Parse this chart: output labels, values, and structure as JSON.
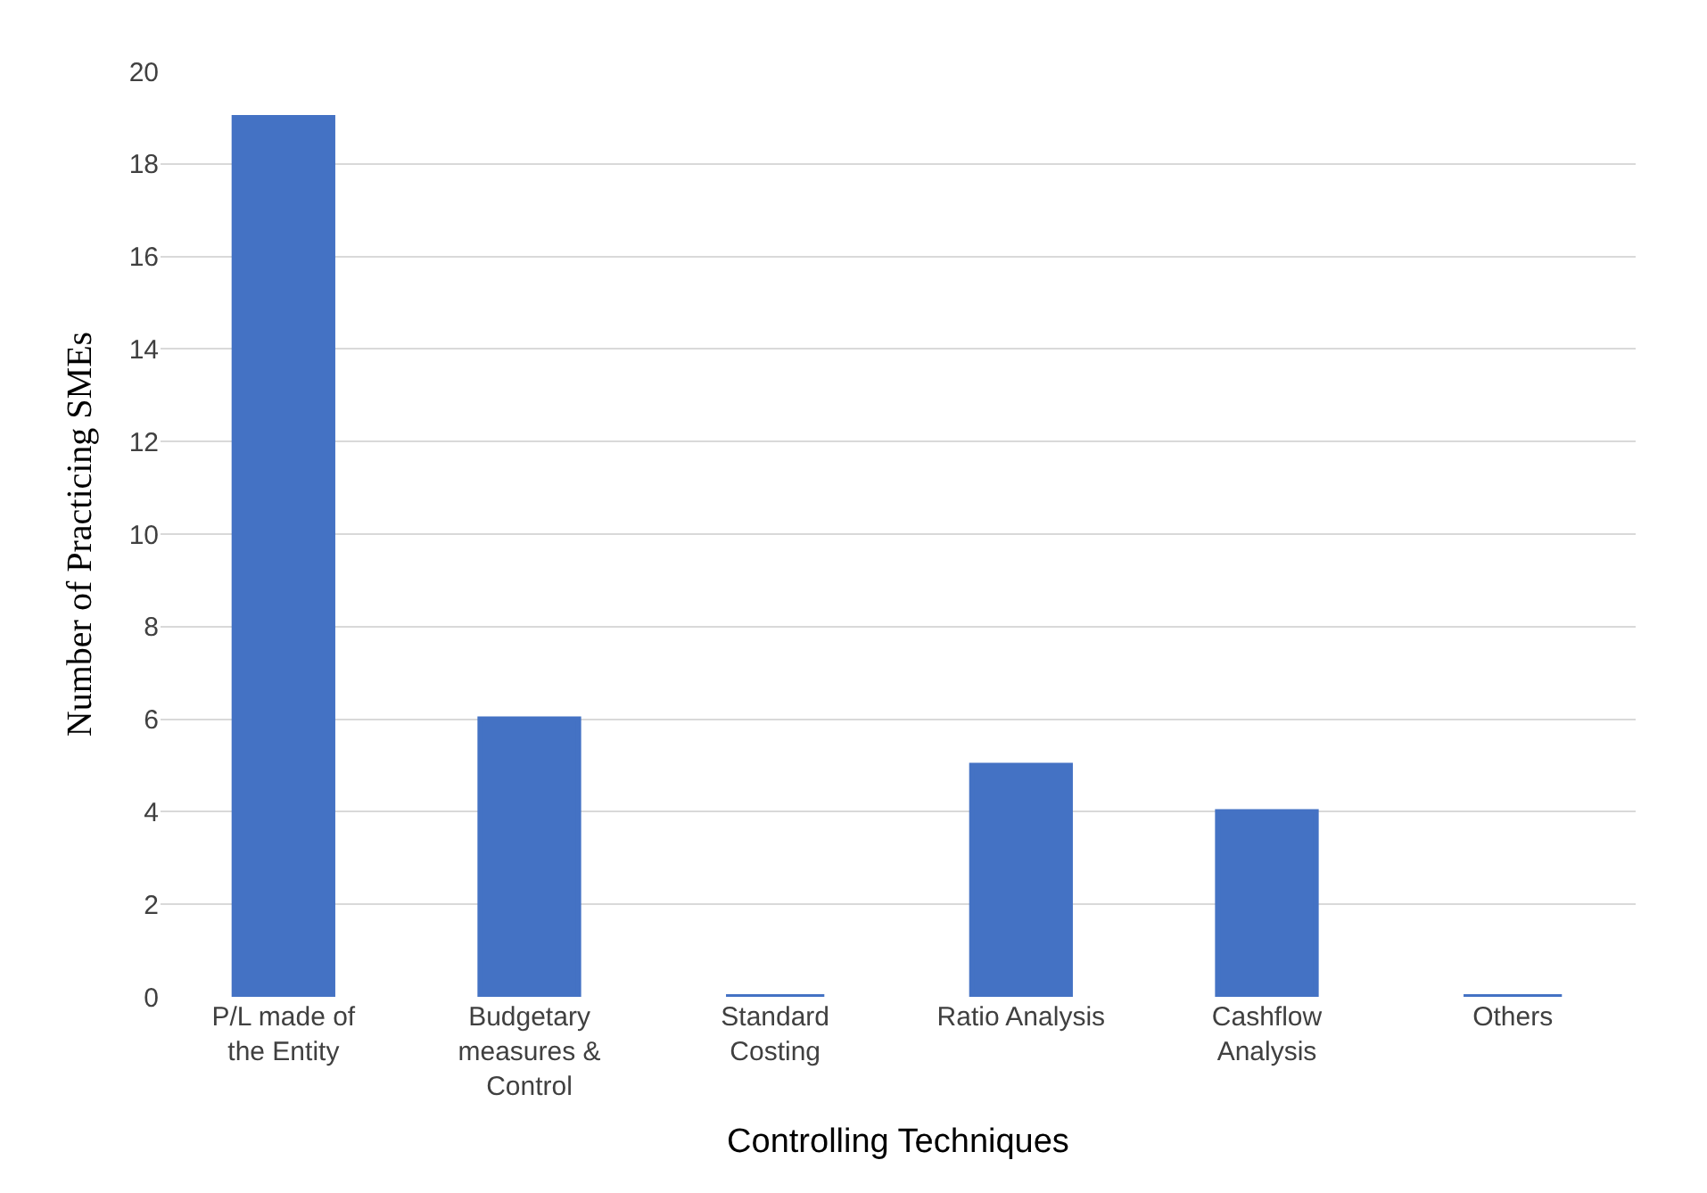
{
  "chart_data": {
    "type": "bar",
    "xlabel": "Controlling Techniques",
    "ylabel": "Number of Practicing SMEs",
    "categories": [
      "P/L made of the Entity",
      "Budgetary measures & Control",
      "Standard Costing",
      "Ratio Analysis",
      "Cashflow Analysis",
      "Others"
    ],
    "values": [
      19,
      6,
      0,
      5,
      4,
      0
    ],
    "color": "#4472c4",
    "ylim": [
      0,
      20
    ],
    "yticks": [
      0,
      2,
      4,
      6,
      8,
      10,
      12,
      14,
      16,
      18,
      20
    ],
    "grid": "y"
  }
}
